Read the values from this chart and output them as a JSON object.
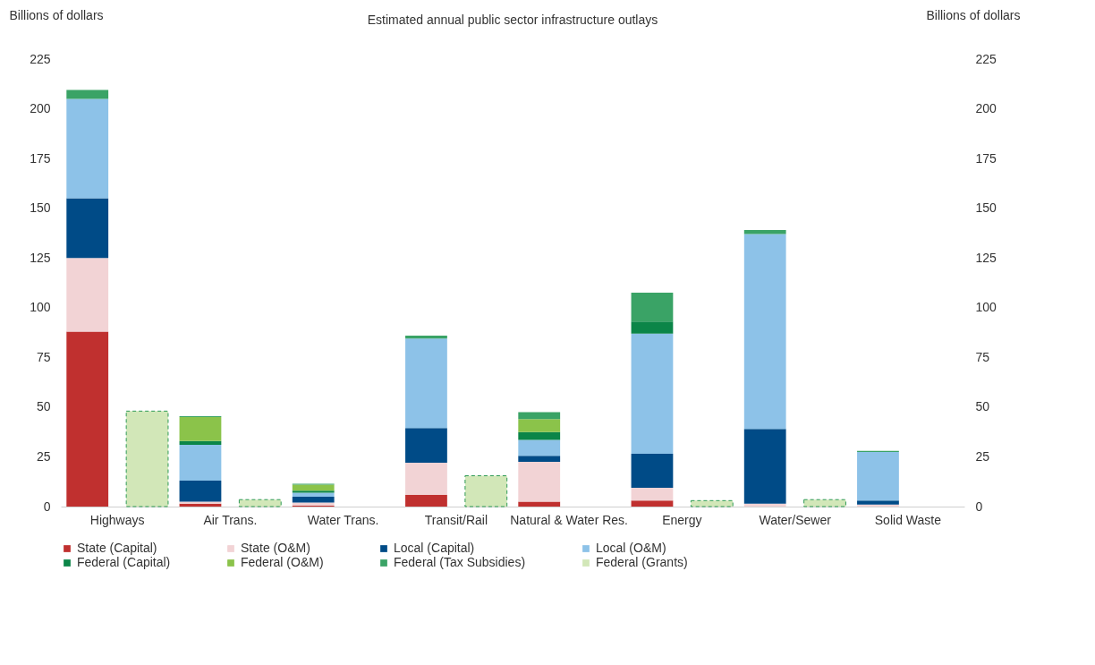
{
  "chart_data": {
    "type": "bar",
    "title": "Estimated annual public sector infrastructure outlays",
    "ylabel": "Billions of dollars",
    "y2label": "Billions of dollars",
    "categories": [
      "Highways",
      "Air Trans.",
      "Water Trans.",
      "Transit/Rail",
      "Natural & Water Res.",
      "Energy",
      "Water/Sewer",
      "Solid Waste"
    ],
    "stacked": true,
    "series": [
      {
        "name": "State (Capital)",
        "color": "#c0302f",
        "values": [
          88,
          1.5,
          0.5,
          6,
          2.5,
          3,
          0,
          0
        ]
      },
      {
        "name": "State (O&M)",
        "color": "#f2d3d5",
        "values": [
          37,
          1,
          1.5,
          16,
          20,
          6.5,
          1.5,
          1
        ]
      },
      {
        "name": "Local (Capital)",
        "color": "#004b87",
        "values": [
          30,
          10.5,
          3,
          17.5,
          3,
          17,
          37.5,
          2
        ]
      },
      {
        "name": "Local (O&M)",
        "color": "#8dc2e8",
        "values": [
          50,
          18,
          2,
          45,
          8,
          60.5,
          98,
          24.5
        ]
      },
      {
        "name": "Federal (Capital)",
        "color": "#0b8548",
        "values": [
          0,
          2,
          1,
          0,
          4,
          6,
          0,
          0
        ]
      },
      {
        "name": "Federal (O&M)",
        "color": "#8bc34a",
        "values": [
          0,
          12,
          3,
          0,
          6.5,
          0,
          0,
          0
        ]
      },
      {
        "name": "Federal (Tax Subsidies)",
        "color": "#3aa366",
        "values": [
          4.5,
          0.5,
          0.5,
          1.5,
          3.5,
          14.5,
          2,
          0.5
        ]
      },
      {
        "name": "Federal (Grants)",
        "color": "#d2e7b8",
        "axis": "y2",
        "values": [
          48,
          3.5,
          null,
          15.5,
          null,
          3,
          3.5,
          null
        ]
      }
    ],
    "ylim": [
      0,
      225
    ],
    "yticks": [
      0,
      25,
      50,
      75,
      100,
      125,
      150,
      175,
      200,
      225
    ],
    "y2lim": [
      0,
      225
    ],
    "y2ticks": [
      0,
      25,
      50,
      75,
      100,
      125,
      150,
      175,
      200,
      225
    ],
    "grid": false,
    "legend": "bottom"
  }
}
